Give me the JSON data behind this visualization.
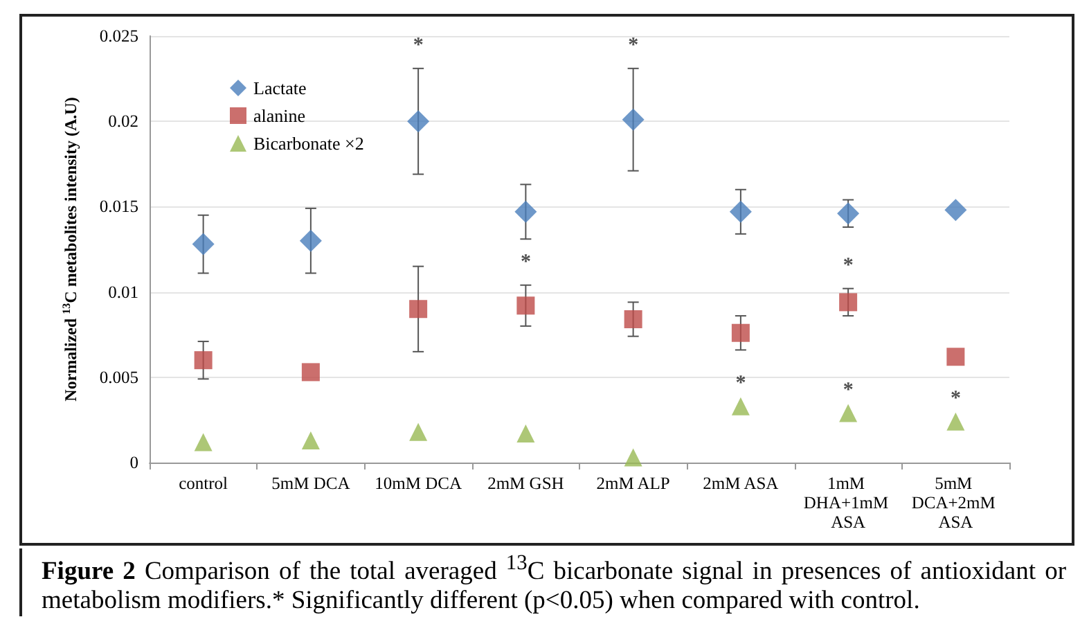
{
  "chart_data": {
    "type": "scatter",
    "ylabel": "Normalized $^{13}$C metabolites intensity (A.U)",
    "categories": [
      "control",
      "5mM DCA",
      "10mM DCA",
      "2mM GSH",
      "2mM ALP",
      "2mM ASA",
      "1mM DHA+1mM ASA",
      "5mM DCA+2mM ASA"
    ],
    "series": [
      {
        "name": "Lactate",
        "color": "#4a7ebb",
        "marker": "diamond",
        "values": [
          0.0128,
          0.013,
          0.02,
          0.0147,
          0.0201,
          0.0147,
          0.0146,
          0.0148
        ],
        "errors": [
          0.0017,
          0.0019,
          0.0031,
          0.0016,
          0.003,
          0.0013,
          0.0008,
          null
        ]
      },
      {
        "name": "alanine",
        "color": "#be4b48",
        "marker": "square",
        "values": [
          0.006,
          0.0053,
          0.009,
          0.0092,
          0.0084,
          0.0076,
          0.0094,
          0.0062
        ],
        "errors": [
          0.0011,
          null,
          0.0025,
          0.0012,
          0.001,
          0.001,
          0.0008,
          null
        ]
      },
      {
        "name": "Bicarbonate ×2",
        "color": "#98b954",
        "marker": "triangle",
        "values": [
          0.0012,
          0.0013,
          0.0018,
          0.0017,
          0.0003,
          0.0033,
          0.0029,
          0.0024
        ]
      }
    ],
    "ylim": [
      0,
      0.025
    ],
    "yticks": [
      0,
      0.005,
      0.01,
      0.015,
      0.02,
      0.025
    ],
    "grid": "y",
    "legend": "top left",
    "annotations": [
      {
        "text": "*",
        "x": "10mM DCA",
        "y": 0.0231
      },
      {
        "text": "*",
        "x": "2mM ALP",
        "y": 0.0231
      },
      {
        "text": "*",
        "x": "2mM GSH",
        "y": 0.0104
      },
      {
        "text": "*",
        "x": "1mM DHA+1mM ASA",
        "y": 0.0102
      },
      {
        "text": "*",
        "x": "2mM ASA",
        "y": 0.0033
      },
      {
        "text": "*",
        "x": "1mM DHA+1mM ASA",
        "y": 0.0029
      },
      {
        "text": "*",
        "x": "5mM DCA+2mM ASA",
        "y": 0.0024
      },
      "**Figure 2** Comparison of the total averaged $^{13}$C bicarbonate signal in presences of antioxidant or metabolism modifiers.* Significantly different (p<0.05) when compared with control."
    ]
  }
}
